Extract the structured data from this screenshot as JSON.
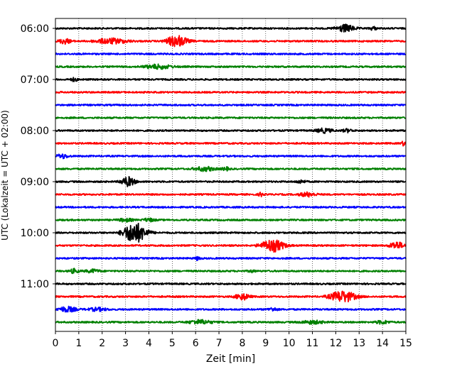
{
  "chart_data": {
    "type": "line",
    "title": "",
    "xlabel": "Zeit  [min]",
    "ylabel": "UTC (Lokalzeit = UTC + 02:00)",
    "xlim": [
      0,
      15
    ],
    "x_ticks": [
      "0",
      "1",
      "2",
      "3",
      "4",
      "5",
      "6",
      "7",
      "8",
      "9",
      "10",
      "11",
      "12",
      "13",
      "14",
      "15"
    ],
    "y_tick_labels": [
      "06:00",
      "07:00",
      "08:00",
      "09:00",
      "10:00",
      "11:00"
    ],
    "y_tick_rows": [
      0,
      4,
      8,
      12,
      16,
      20
    ],
    "grid": "vertical dotted",
    "colors": [
      "#000000",
      "#ff0000",
      "#0000ff",
      "#008000"
    ],
    "row_minutes": 15,
    "series": [
      {
        "start_utc": "06:00",
        "color": "#000000",
        "events": [
          {
            "t": 12.4,
            "amp": 0.35,
            "dur": 0.8
          },
          {
            "t": 13.6,
            "amp": 0.15,
            "dur": 0.3
          }
        ]
      },
      {
        "start_utc": "06:15",
        "color": "#ff0000",
        "events": [
          {
            "t": 0.4,
            "amp": 0.25,
            "dur": 0.5
          },
          {
            "t": 2.4,
            "amp": 0.25,
            "dur": 1.4
          },
          {
            "t": 5.2,
            "amp": 0.55,
            "dur": 0.9
          }
        ]
      },
      {
        "start_utc": "06:30",
        "color": "#0000ff",
        "events": []
      },
      {
        "start_utc": "06:45",
        "color": "#008000",
        "events": [
          {
            "t": 4.4,
            "amp": 0.2,
            "dur": 1.2
          }
        ]
      },
      {
        "start_utc": "07:00",
        "color": "#000000",
        "events": [
          {
            "t": 0.8,
            "amp": 0.15,
            "dur": 0.3
          }
        ]
      },
      {
        "start_utc": "07:15",
        "color": "#ff0000",
        "events": []
      },
      {
        "start_utc": "07:30",
        "color": "#0000ff",
        "events": []
      },
      {
        "start_utc": "07:45",
        "color": "#008000",
        "events": []
      },
      {
        "start_utc": "08:00",
        "color": "#000000",
        "events": [
          {
            "t": 11.5,
            "amp": 0.2,
            "dur": 0.7
          },
          {
            "t": 12.5,
            "amp": 0.15,
            "dur": 0.4
          }
        ]
      },
      {
        "start_utc": "08:15",
        "color": "#ff0000",
        "events": [
          {
            "t": 14.9,
            "amp": 0.2,
            "dur": 0.2
          }
        ]
      },
      {
        "start_utc": "08:30",
        "color": "#0000ff",
        "events": [
          {
            "t": 0.3,
            "amp": 0.2,
            "dur": 0.5
          }
        ]
      },
      {
        "start_utc": "08:45",
        "color": "#008000",
        "events": [
          {
            "t": 6.4,
            "amp": 0.2,
            "dur": 0.9
          },
          {
            "t": 7.3,
            "amp": 0.15,
            "dur": 0.3
          }
        ]
      },
      {
        "start_utc": "09:00",
        "color": "#000000",
        "events": [
          {
            "t": 3.1,
            "amp": 0.45,
            "dur": 0.6
          },
          {
            "t": 10.5,
            "amp": 0.15,
            "dur": 0.4
          }
        ]
      },
      {
        "start_utc": "09:15",
        "color": "#ff0000",
        "events": [
          {
            "t": 8.8,
            "amp": 0.2,
            "dur": 0.2
          },
          {
            "t": 10.8,
            "amp": 0.2,
            "dur": 0.7
          }
        ]
      },
      {
        "start_utc": "09:30",
        "color": "#0000ff",
        "events": []
      },
      {
        "start_utc": "09:45",
        "color": "#008000",
        "events": [
          {
            "t": 3.0,
            "amp": 0.15,
            "dur": 0.6
          },
          {
            "t": 4.0,
            "amp": 0.15,
            "dur": 0.5
          }
        ]
      },
      {
        "start_utc": "10:00",
        "color": "#000000",
        "events": [
          {
            "t": 3.4,
            "amp": 1.0,
            "dur": 1.0
          }
        ]
      },
      {
        "start_utc": "10:15",
        "color": "#ff0000",
        "events": [
          {
            "t": 9.3,
            "amp": 0.6,
            "dur": 1.0
          },
          {
            "t": 14.6,
            "amp": 0.35,
            "dur": 0.6
          }
        ]
      },
      {
        "start_utc": "10:30",
        "color": "#0000ff",
        "events": [
          {
            "t": 6.1,
            "amp": 0.2,
            "dur": 0.2
          }
        ]
      },
      {
        "start_utc": "10:45",
        "color": "#008000",
        "events": [
          {
            "t": 0.8,
            "amp": 0.2,
            "dur": 0.4
          },
          {
            "t": 1.6,
            "amp": 0.15,
            "dur": 0.6
          },
          {
            "t": 8.4,
            "amp": 0.1,
            "dur": 0.3
          }
        ]
      },
      {
        "start_utc": "11:00",
        "color": "#000000",
        "events": []
      },
      {
        "start_utc": "11:15",
        "color": "#ff0000",
        "events": [
          {
            "t": 8.0,
            "amp": 0.3,
            "dur": 0.6
          },
          {
            "t": 12.3,
            "amp": 0.55,
            "dur": 1.1
          }
        ]
      },
      {
        "start_utc": "11:30",
        "color": "#0000ff",
        "events": [
          {
            "t": 0.5,
            "amp": 0.25,
            "dur": 0.8
          },
          {
            "t": 1.8,
            "amp": 0.15,
            "dur": 0.8
          },
          {
            "t": 9.3,
            "amp": 0.15,
            "dur": 0.4
          }
        ]
      },
      {
        "start_utc": "11:45",
        "color": "#008000",
        "events": [
          {
            "t": 6.2,
            "amp": 0.2,
            "dur": 1.0
          },
          {
            "t": 11.0,
            "amp": 0.15,
            "dur": 1.0
          },
          {
            "t": 14.0,
            "amp": 0.15,
            "dur": 0.6
          }
        ]
      }
    ]
  }
}
